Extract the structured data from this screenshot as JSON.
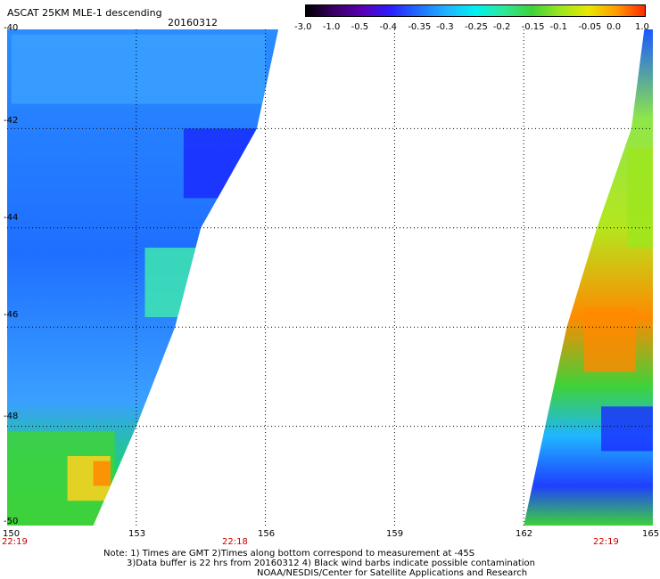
{
  "title": "ASCAT 25KM MLE-1 descending",
  "date": "20160312",
  "colorbar": {
    "labels": [
      "-3.0",
      "-1.0",
      "-0.5",
      "-0.4",
      "-0.35",
      "-0.3",
      "-0.25",
      "-0.2",
      "-0.15",
      "-0.1",
      "-0.05",
      "0.0",
      "1.0"
    ],
    "colors": [
      "#000000",
      "#3a0066",
      "#5a00b4",
      "#2a1fff",
      "#1f6fff",
      "#1fb5ff",
      "#00f0f0",
      "#2ee89a",
      "#3ed23a",
      "#9ce61e",
      "#e8e800",
      "#ff9a00",
      "#ff2a00"
    ]
  },
  "axes": {
    "lat_labels": [
      "-40",
      "-42",
      "-44",
      "-46",
      "-48",
      "-50"
    ],
    "lon_labels": [
      "150",
      "153",
      "156",
      "159",
      "162",
      "165"
    ],
    "lat_range": [
      -50,
      -40
    ],
    "lon_range": [
      150,
      165
    ]
  },
  "time_labels": [
    "22:19",
    "22:18",
    "22:19"
  ],
  "notes": [
    "Note: 1) Times are GMT 2)Times along bottom correspond to measurement at -45S",
    "3)Data buffer is 22 hrs from 20160312 4) Black wind barbs indicate possible contamination",
    "NOAA/NESDIS/Center for Satellite Applications and Research"
  ],
  "swaths": {
    "west": {
      "edge": [
        [
          -40,
          156.3
        ],
        [
          -42,
          155.8
        ],
        [
          -44,
          154.5
        ],
        [
          -46,
          153.9
        ],
        [
          -48,
          153.0
        ],
        [
          -50,
          152.0
        ]
      ]
    },
    "east": {
      "edge": [
        [
          -40,
          164.8
        ],
        [
          -42,
          164.5
        ],
        [
          -44,
          163.7
        ],
        [
          -46,
          163.0
        ],
        [
          -48,
          162.5
        ],
        [
          -50,
          162.0
        ]
      ]
    }
  }
}
